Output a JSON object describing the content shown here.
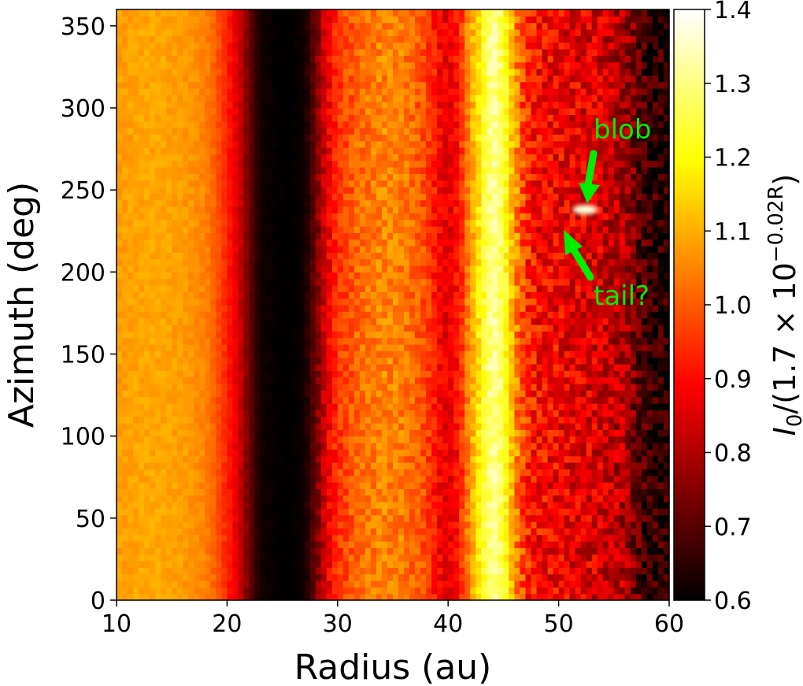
{
  "chart_data": {
    "type": "heatmap",
    "title": "",
    "xlabel": "Radius (au)",
    "ylabel": "Azimuth (deg)",
    "xlim": [
      10,
      60
    ],
    "ylim": [
      0,
      360
    ],
    "xticks": [
      10,
      20,
      30,
      40,
      50,
      60
    ],
    "yticks": [
      0,
      50,
      100,
      150,
      200,
      250,
      300,
      350
    ],
    "colormap": "hot",
    "colorbar": {
      "label_prefix": "I",
      "label_subscript": "0",
      "label_main": "/(1.7 × 10",
      "label_exponent": "−0.02R",
      "label_suffix": ")",
      "range": [
        0.6,
        1.4
      ],
      "ticks": [
        "0.6",
        "0.7",
        "0.8",
        "0.9",
        "1.0",
        "1.1",
        "1.2",
        "1.3",
        "1.4"
      ]
    },
    "radial_profile": {
      "radius_au": [
        10,
        12,
        14,
        16,
        18,
        19,
        20,
        21,
        22,
        23,
        25,
        26,
        27,
        28,
        29,
        30,
        32,
        34,
        36,
        38,
        39,
        40,
        41,
        42,
        43,
        44,
        45,
        46,
        47,
        48,
        50,
        52,
        54,
        56,
        57,
        58,
        60
      ],
      "intensity": [
        1.08,
        1.09,
        1.09,
        1.08,
        1.05,
        1.0,
        0.93,
        0.85,
        0.72,
        0.62,
        0.6,
        0.6,
        0.62,
        0.72,
        0.86,
        0.95,
        1.02,
        1.05,
        1.04,
        0.98,
        0.9,
        0.86,
        0.92,
        1.08,
        1.2,
        1.33,
        1.25,
        1.08,
        0.95,
        0.9,
        0.88,
        0.86,
        0.84,
        0.8,
        0.72,
        0.66,
        0.64
      ]
    },
    "annotations": [
      {
        "text": "blob",
        "radius_au": 52.4,
        "azimuth_deg": 238,
        "color": "#00ee00"
      },
      {
        "text": "tail?",
        "radius_au": 50.5,
        "azimuth_deg": 226,
        "color": "#00ee00"
      }
    ]
  }
}
